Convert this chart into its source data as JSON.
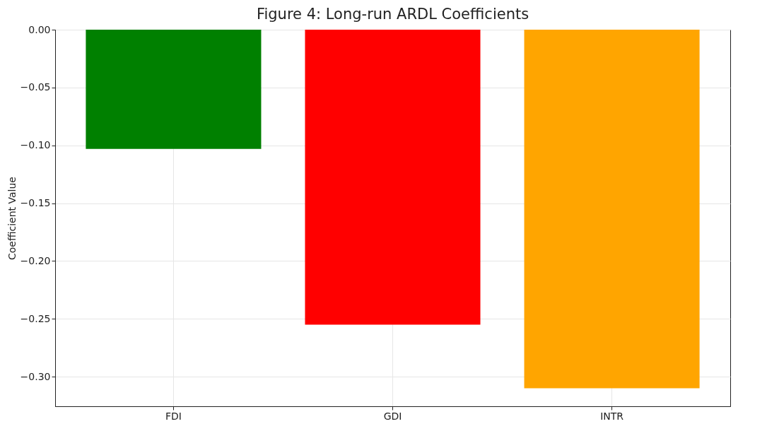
{
  "chart_data": {
    "type": "bar",
    "title": "Figure 4: Long-run ARDL Coefficients",
    "ylabel": "Coefficient Value",
    "categories": [
      "FDI",
      "GDI",
      "INTR"
    ],
    "values": [
      -0.103,
      -0.255,
      -0.31
    ],
    "colors": [
      "#008000",
      "#ff0000",
      "#ffa500"
    ],
    "ylim": [
      -0.3255,
      0
    ],
    "yticks": [
      {
        "value": 0,
        "label": "0.00"
      },
      {
        "value": -0.05,
        "label": "−0.05"
      },
      {
        "value": -0.1,
        "label": "−0.10"
      },
      {
        "value": -0.15,
        "label": "−0.15"
      },
      {
        "value": -0.2,
        "label": "−0.20"
      },
      {
        "value": -0.25,
        "label": "−0.25"
      },
      {
        "value": -0.3,
        "label": "−0.30"
      }
    ],
    "grid": true
  }
}
